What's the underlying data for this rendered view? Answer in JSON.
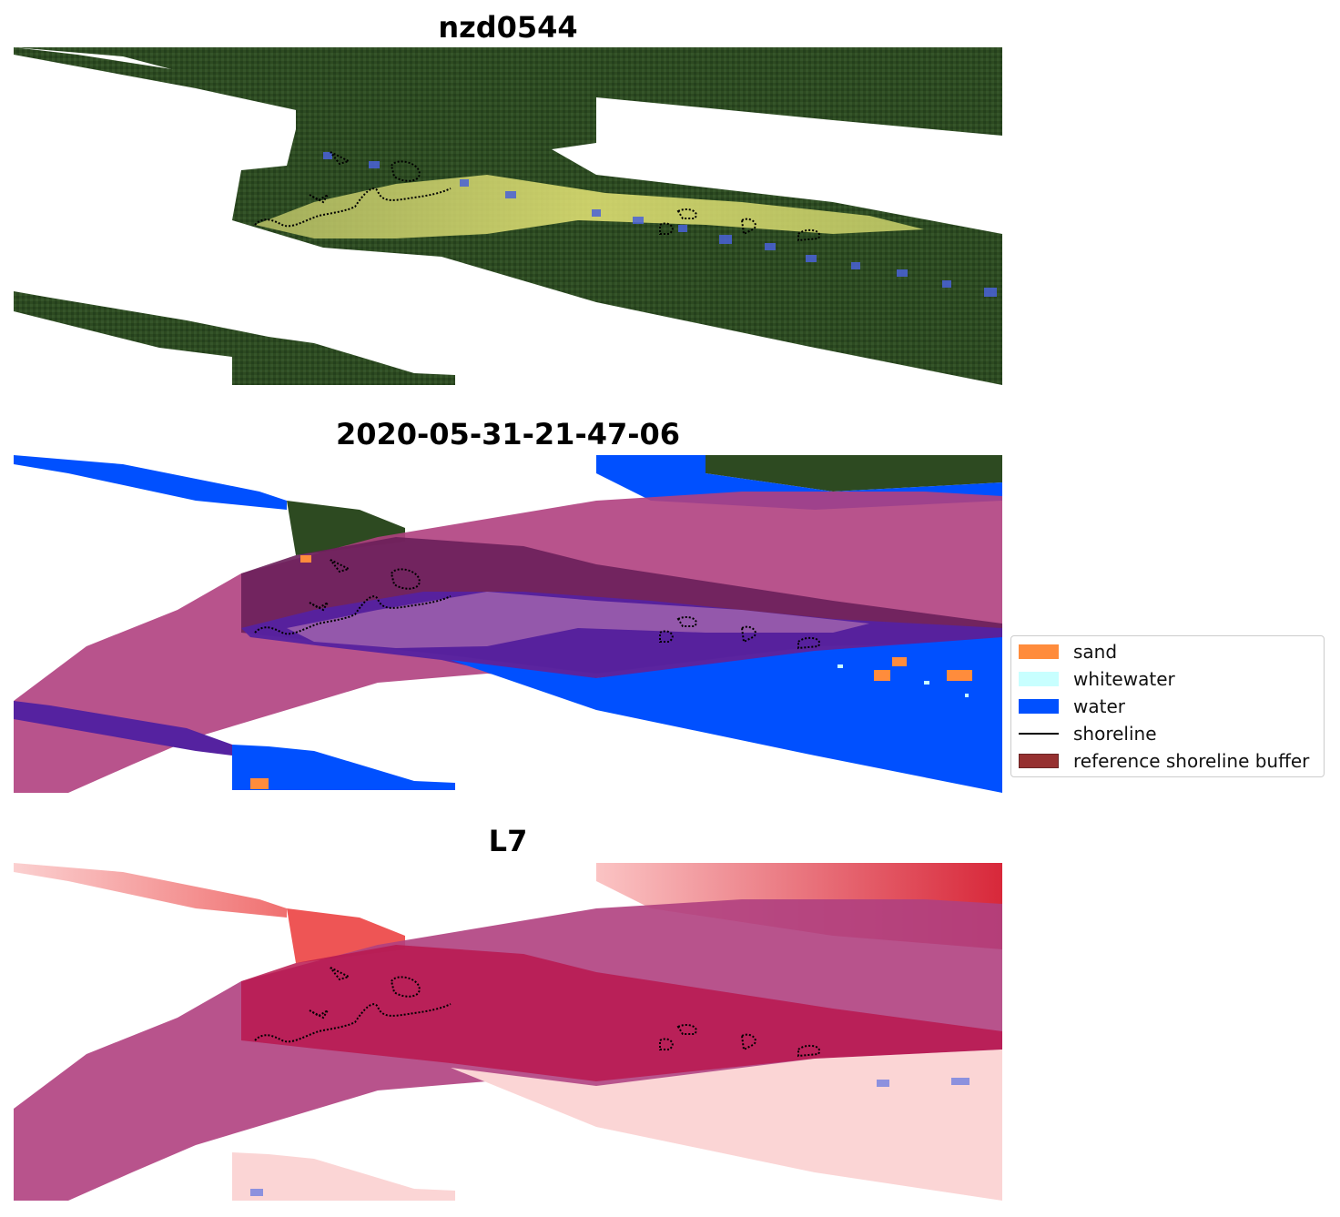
{
  "panels": [
    {
      "title": "nzd0544",
      "kind": "rgb"
    },
    {
      "title": "2020-05-31-21-47-06",
      "kind": "classified"
    },
    {
      "title": "L7",
      "kind": "index"
    }
  ],
  "legend": {
    "items": [
      {
        "label": "sand",
        "color": "#ff8c3c",
        "type": "patch"
      },
      {
        "label": "whitewater",
        "color": "#c8ffff",
        "type": "patch"
      },
      {
        "label": "water",
        "color": "#0050ff",
        "type": "patch"
      },
      {
        "label": "shoreline",
        "color": "#000000",
        "type": "line"
      },
      {
        "label": "reference shoreline buffer",
        "color": "#8b1a1a",
        "type": "patch"
      }
    ]
  },
  "colors": {
    "vegetation": "#2f4a22",
    "beach_highlight": "#c9cc5a",
    "buffer": "#b0407f",
    "water": "#0050ff",
    "index_high": "#e0342c",
    "index_low": "#fde0e0"
  }
}
